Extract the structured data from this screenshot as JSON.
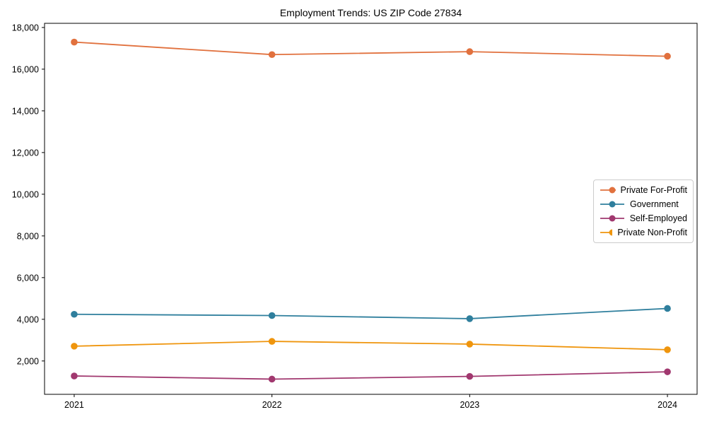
{
  "chart_data": {
    "type": "line",
    "title": "Employment Trends: US ZIP Code 27834",
    "xlabel": "",
    "ylabel": "",
    "x": [
      2021,
      2022,
      2023,
      2024
    ],
    "x_tick_labels": [
      "2021",
      "2022",
      "2023",
      "2024"
    ],
    "series": [
      {
        "name": "Private For-Profit",
        "color": "#E1713E",
        "values": [
          17300,
          16700,
          16840,
          16620
        ]
      },
      {
        "name": "Government",
        "color": "#2F7F9D",
        "values": [
          4240,
          4180,
          4030,
          4520
        ]
      },
      {
        "name": "Self-Employed",
        "color": "#A1386F",
        "values": [
          1280,
          1130,
          1260,
          1480
        ]
      },
      {
        "name": "Private Non-Profit",
        "color": "#EF950D",
        "values": [
          2710,
          2940,
          2810,
          2540
        ]
      }
    ],
    "y_ticks": [
      2000,
      4000,
      6000,
      8000,
      10000,
      12000,
      14000,
      16000,
      18000
    ],
    "y_tick_labels": [
      "2,000",
      "4,000",
      "6,000",
      "8,000",
      "10,000",
      "12,000",
      "14,000",
      "16,000",
      "18,000"
    ],
    "ylim": [
      400,
      18200
    ],
    "xlim": [
      2020.85,
      2024.15
    ],
    "grid": false,
    "legend": {
      "position": "center-right",
      "entries": [
        "Private For-Profit",
        "Government",
        "Self-Employed",
        "Private Non-Profit"
      ]
    }
  },
  "style": {
    "axis_color": "#000000",
    "text_color": "#000000",
    "legend_border_color": "#cccccc",
    "background_color": "#ffffff"
  }
}
